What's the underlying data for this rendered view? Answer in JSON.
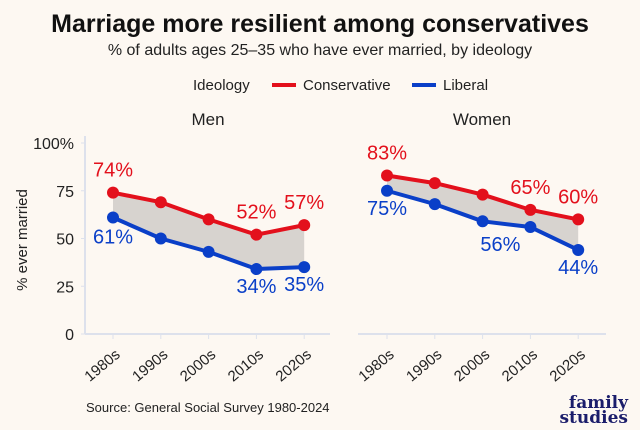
{
  "title": "Marriage more resilient among conservatives",
  "subtitle": "% of adults ages 25–35 who have ever married, by ideology",
  "source": "Source: General Social Survey 1980-2024",
  "logo": "family studies",
  "colors": {
    "Conservative": "#e3101c",
    "Liberal": "#0a3fc8",
    "gap_fill": "#d7d3cf",
    "background": "#fdf8f2"
  },
  "chart_data": [
    {
      "type": "line",
      "title": "Men",
      "ylabel": "% ever married",
      "legend_title": "Ideology",
      "legend_position": "top",
      "categories": [
        "1980s",
        "1990s",
        "2000s",
        "2010s",
        "2020s"
      ],
      "yticks": [
        "0",
        "25",
        "50",
        "75",
        "100%"
      ],
      "ylim": [
        0,
        100
      ],
      "grid": false,
      "series": [
        {
          "name": "Conservative",
          "values": [
            74,
            69,
            60,
            52,
            57
          ],
          "labels": [
            "74%",
            null,
            null,
            "52%",
            "57%"
          ]
        },
        {
          "name": "Liberal",
          "values": [
            61,
            50,
            43,
            34,
            35
          ],
          "labels": [
            "61%",
            null,
            null,
            "34%",
            "35%"
          ]
        }
      ]
    },
    {
      "type": "line",
      "title": "Women",
      "categories": [
        "1980s",
        "1990s",
        "2000s",
        "2010s",
        "2020s"
      ],
      "ylim": [
        0,
        100
      ],
      "grid": false,
      "series": [
        {
          "name": "Conservative",
          "values": [
            83,
            79,
            73,
            65,
            60
          ],
          "labels": [
            "83%",
            null,
            null,
            "65%",
            "60%"
          ]
        },
        {
          "name": "Liberal",
          "values": [
            75,
            68,
            59,
            56,
            44
          ],
          "labels": [
            "75%",
            null,
            null,
            "56%",
            "44%"
          ]
        }
      ]
    }
  ]
}
